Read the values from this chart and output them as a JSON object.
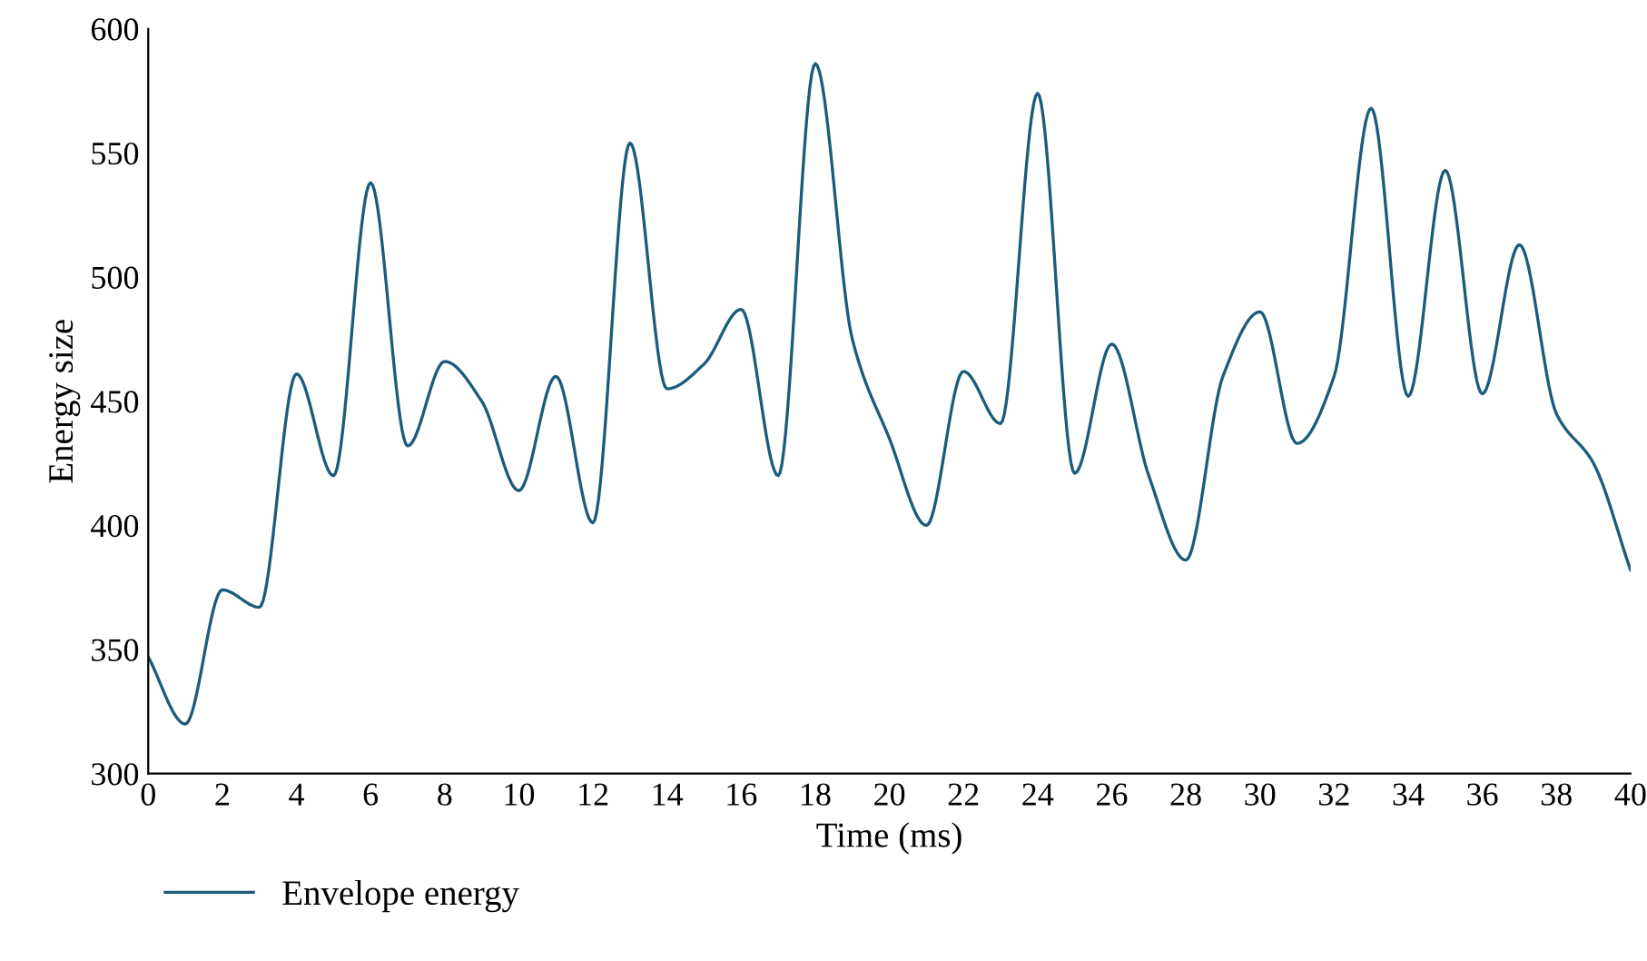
{
  "chart_data": {
    "type": "line",
    "xlabel": "Time (ms)",
    "ylabel": "Energy size",
    "x": [
      0,
      1,
      2,
      3,
      4,
      5,
      6,
      7,
      8,
      9,
      10,
      11,
      12,
      13,
      14,
      15,
      16,
      17,
      18,
      19,
      20,
      21,
      22,
      23,
      24,
      25,
      26,
      27,
      28,
      29,
      30,
      31,
      32,
      33,
      34,
      35,
      36,
      37,
      38,
      39,
      40
    ],
    "series": [
      {
        "name": "Envelope energy",
        "color": "#1b5c7c",
        "values": [
          347,
          320,
          374,
          367,
          461,
          420,
          538,
          432,
          466,
          450,
          414,
          460,
          401,
          554,
          455,
          465,
          487,
          420,
          586,
          475,
          435,
          400,
          462,
          441,
          574,
          421,
          473,
          420,
          386,
          460,
          486,
          433,
          460,
          568,
          452,
          543,
          453,
          513,
          445,
          425,
          382
        ]
      }
    ],
    "xlim": [
      0,
      40
    ],
    "xticks": [
      0,
      2,
      4,
      6,
      8,
      10,
      12,
      14,
      16,
      18,
      20,
      22,
      24,
      26,
      28,
      30,
      32,
      34,
      36,
      38,
      40
    ],
    "ylim": [
      300,
      600
    ],
    "yticks": [
      300,
      350,
      400,
      450,
      500,
      550,
      600
    ],
    "grid": false,
    "legend": "bottom left",
    "marker": "none",
    "line_style": "solid"
  }
}
